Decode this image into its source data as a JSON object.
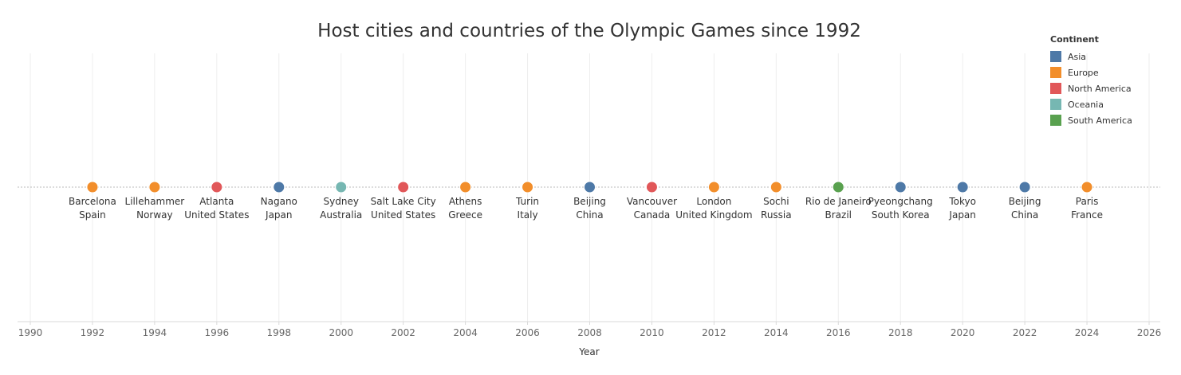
{
  "chart_data": {
    "type": "scatter",
    "title": "Host cities and countries of the Olympic Games since 1992",
    "xlabel": "Year",
    "ylabel": "",
    "xlim": [
      1990,
      2026
    ],
    "x_ticks": [
      1990,
      1992,
      1994,
      1996,
      1998,
      2000,
      2002,
      2004,
      2006,
      2008,
      2010,
      2012,
      2014,
      2016,
      2018,
      2020,
      2022,
      2024,
      2026
    ],
    "grid": true,
    "legend_placement": "top-right",
    "legend_title": "Continent",
    "continents": [
      {
        "name": "Asia",
        "color": "#4e79a7"
      },
      {
        "name": "Europe",
        "color": "#f28e2b"
      },
      {
        "name": "North America",
        "color": "#e15759"
      },
      {
        "name": "Oceania",
        "color": "#76b7b2"
      },
      {
        "name": "South America",
        "color": "#59a14f"
      }
    ],
    "points": [
      {
        "year": 1992,
        "city": "Barcelona",
        "country": "Spain",
        "continent": "Europe"
      },
      {
        "year": 1994,
        "city": "Lillehammer",
        "country": "Norway",
        "continent": "Europe"
      },
      {
        "year": 1996,
        "city": "Atlanta",
        "country": "United States",
        "continent": "North America"
      },
      {
        "year": 1998,
        "city": "Nagano",
        "country": "Japan",
        "continent": "Asia"
      },
      {
        "year": 2000,
        "city": "Sydney",
        "country": "Australia",
        "continent": "Oceania"
      },
      {
        "year": 2002,
        "city": "Salt Lake City",
        "country": "United States",
        "continent": "North America"
      },
      {
        "year": 2004,
        "city": "Athens",
        "country": "Greece",
        "continent": "Europe"
      },
      {
        "year": 2006,
        "city": "Turin",
        "country": "Italy",
        "continent": "Europe"
      },
      {
        "year": 2008,
        "city": "Beijing",
        "country": "China",
        "continent": "Asia"
      },
      {
        "year": 2010,
        "city": "Vancouver",
        "country": "Canada",
        "continent": "North America"
      },
      {
        "year": 2012,
        "city": "London",
        "country": "United Kingdom",
        "continent": "Europe"
      },
      {
        "year": 2014,
        "city": "Sochi",
        "country": "Russia",
        "continent": "Europe"
      },
      {
        "year": 2016,
        "city": "Rio de Janeiro",
        "country": "Brazil",
        "continent": "South America"
      },
      {
        "year": 2018,
        "city": "Pyeongchang",
        "country": "South Korea",
        "continent": "Asia"
      },
      {
        "year": 2020,
        "city": "Tokyo",
        "country": "Japan",
        "continent": "Asia"
      },
      {
        "year": 2022,
        "city": "Beijing",
        "country": "China",
        "continent": "Asia"
      },
      {
        "year": 2024,
        "city": "Paris",
        "country": "France",
        "continent": "Europe"
      }
    ]
  }
}
